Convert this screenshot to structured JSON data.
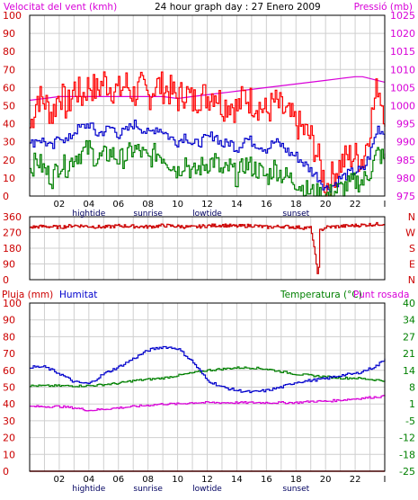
{
  "top": {
    "title": "24 hour graph day : 27 Enero 2009",
    "left_label": "Velocitat del vent (kmh)",
    "right_label": "Pressió (mb)"
  },
  "mid": {},
  "bot": {
    "left_label": "Pluja (mm)",
    "humidity_label": "Humitat",
    "temp_label": "Temperatura (°C)",
    "dew_label": "Punt rosada"
  },
  "colors": {
    "wind_gust": "#ff0000",
    "wind_avg": "#0000cc",
    "wind_low": "#008000",
    "pressure": "#d800d8",
    "direction": "#cc0000",
    "humidity": "#0000cc",
    "temperature": "#008000",
    "dewpoint": "#d800d8",
    "rain": "#cc0000",
    "grid": "#cfcfcf",
    "frame": "#000000"
  },
  "x_ticks": [
    "02",
    "04",
    "06",
    "08",
    "10",
    "12",
    "14",
    "16",
    "18",
    "20",
    "22",
    "I"
  ],
  "events": [
    {
      "x": 4,
      "label": "hightide"
    },
    {
      "x": 8,
      "label": "sunrise"
    },
    {
      "x": 12,
      "label": "lowtide"
    },
    {
      "x": 18,
      "label": "sunset"
    }
  ],
  "chart_data": [
    {
      "type": "line",
      "x_unit": "hour of day",
      "xlim": [
        0,
        24
      ],
      "y_left": {
        "label": "Velocitat del vent (kmh)",
        "lim": [
          0,
          100
        ],
        "ticks": [
          "0",
          "10",
          "20",
          "30",
          "40",
          "50",
          "60",
          "70",
          "80",
          "90",
          "100"
        ]
      },
      "y_right": {
        "label": "Pressió (mb)",
        "lim": [
          975,
          1025
        ],
        "ticks": [
          "975",
          "980",
          "985",
          "990",
          "995",
          "1000",
          "1005",
          "1010",
          "1015",
          "1020",
          "1025"
        ]
      },
      "grid": true,
      "series": [
        {
          "key": "gust",
          "axis": "left",
          "x": [
            0,
            0.5,
            1,
            1.5,
            2,
            2.5,
            3,
            3.5,
            4,
            4.5,
            5,
            5.5,
            6,
            6.5,
            7,
            7.5,
            8,
            8.5,
            9,
            9.5,
            10,
            10.5,
            11,
            11.5,
            12,
            12.5,
            13,
            13.5,
            14,
            14.5,
            15,
            15.5,
            16,
            16.5,
            17,
            17.5,
            18,
            18.5,
            19,
            19.5,
            20,
            20.5,
            21,
            21.5,
            22,
            22.5,
            23,
            23.5,
            24
          ],
          "values": [
            38,
            55,
            52,
            45,
            58,
            48,
            60,
            55,
            62,
            58,
            64,
            60,
            58,
            62,
            56,
            60,
            55,
            62,
            60,
            58,
            54,
            58,
            52,
            56,
            55,
            58,
            50,
            52,
            48,
            56,
            52,
            50,
            46,
            52,
            48,
            44,
            40,
            36,
            32,
            20,
            5,
            12,
            18,
            22,
            22,
            20,
            40,
            62,
            45
          ]
        },
        {
          "key": "avg",
          "axis": "left",
          "x": [
            0,
            0.5,
            1,
            1.5,
            2,
            2.5,
            3,
            3.5,
            4,
            4.5,
            5,
            5.5,
            6,
            6.5,
            7,
            7.5,
            8,
            8.5,
            9,
            9.5,
            10,
            10.5,
            11,
            11.5,
            12,
            12.5,
            13,
            13.5,
            14,
            14.5,
            15,
            15.5,
            16,
            16.5,
            17,
            17.5,
            18,
            18.5,
            19,
            19.5,
            20,
            20.5,
            21,
            21.5,
            22,
            22.5,
            23,
            23.5,
            24
          ],
          "values": [
            28,
            32,
            30,
            26,
            34,
            30,
            36,
            38,
            40,
            34,
            36,
            38,
            34,
            36,
            40,
            38,
            34,
            38,
            36,
            32,
            30,
            34,
            28,
            30,
            32,
            34,
            28,
            30,
            26,
            32,
            30,
            28,
            26,
            30,
            28,
            24,
            22,
            18,
            14,
            10,
            4,
            6,
            10,
            12,
            14,
            14,
            24,
            38,
            34
          ]
        },
        {
          "key": "low",
          "axis": "left",
          "x": [
            0,
            0.5,
            1,
            1.5,
            2,
            2.5,
            3,
            3.5,
            4,
            4.5,
            5,
            5.5,
            6,
            6.5,
            7,
            7.5,
            8,
            8.5,
            9,
            9.5,
            10,
            10.5,
            11,
            11.5,
            12,
            12.5,
            13,
            13.5,
            14,
            14.5,
            15,
            15.5,
            16,
            16.5,
            17,
            17.5,
            18,
            18.5,
            19,
            19.5,
            20,
            20.5,
            21,
            21.5,
            22,
            22.5,
            23,
            23.5,
            24
          ],
          "values": [
            15,
            20,
            14,
            10,
            18,
            16,
            22,
            24,
            26,
            20,
            22,
            24,
            20,
            22,
            26,
            24,
            20,
            24,
            22,
            18,
            14,
            20,
            12,
            16,
            18,
            20,
            12,
            16,
            10,
            18,
            16,
            14,
            10,
            16,
            12,
            10,
            8,
            4,
            2,
            1,
            0,
            2,
            4,
            6,
            8,
            8,
            14,
            24,
            20
          ]
        },
        {
          "key": "pressure",
          "axis": "right",
          "x": [
            0,
            1,
            2,
            3,
            4,
            5,
            6,
            7,
            8,
            9,
            10,
            11,
            12,
            13,
            14,
            15,
            16,
            17,
            18,
            19,
            20,
            21,
            22,
            22.5,
            23,
            23.5,
            24
          ],
          "values": [
            1001.5,
            1002,
            1002.5,
            1002.5,
            1002.5,
            1002.5,
            1002.5,
            1002.5,
            1002.5,
            1002.5,
            1002,
            1002.5,
            1003,
            1003.5,
            1004,
            1004.5,
            1005,
            1005.5,
            1006,
            1006.5,
            1007,
            1007.5,
            1008,
            1008,
            1007.5,
            1007,
            1006.5
          ]
        }
      ]
    },
    {
      "type": "scatter",
      "x_unit": "hour of day",
      "xlim": [
        0,
        24
      ],
      "y_left": {
        "lim": [
          0,
          360
        ],
        "ticks": [
          "0",
          "90",
          "180",
          "270",
          "360"
        ]
      },
      "y_right": {
        "ticks": [
          "N",
          "E",
          "S",
          "W",
          "N"
        ]
      },
      "grid": true,
      "series": [
        {
          "key": "direction",
          "x": [
            0,
            1,
            2,
            3,
            4,
            5,
            6,
            7,
            8,
            9,
            10,
            11,
            12,
            13,
            14,
            15,
            16,
            17,
            18,
            19,
            19.5,
            19.6,
            20,
            21,
            22,
            23,
            24
          ],
          "values": [
            300,
            305,
            300,
            310,
            305,
            300,
            308,
            305,
            302,
            310,
            305,
            300,
            308,
            312,
            305,
            310,
            300,
            305,
            300,
            295,
            10,
            280,
            300,
            305,
            310,
            315,
            320
          ]
        }
      ]
    },
    {
      "type": "line",
      "x_unit": "hour of day",
      "xlim": [
        0,
        24
      ],
      "y_left": {
        "label": "Pluja (mm)",
        "lim": [
          0,
          100
        ],
        "ticks": [
          "0",
          "10",
          "20",
          "30",
          "40",
          "50",
          "60",
          "70",
          "80",
          "90",
          "100"
        ]
      },
      "y_right": {
        "label": "Temperatura (°C)",
        "lim": [
          -25,
          40
        ],
        "ticks": [
          "-25",
          "-18",
          "-12",
          "-5",
          "1",
          "8",
          "14",
          "21",
          "27",
          "34",
          "40"
        ]
      },
      "grid": true,
      "series": [
        {
          "key": "humidity",
          "axis": "left",
          "name": "Humitat",
          "x": [
            0,
            1,
            2,
            3,
            4,
            5,
            6,
            7,
            8,
            9,
            10,
            11,
            12,
            13,
            14,
            15,
            16,
            17,
            18,
            19,
            20,
            21,
            22,
            23,
            23.5,
            24
          ],
          "values": [
            62,
            62,
            58,
            53,
            52,
            58,
            62,
            67,
            72,
            74,
            73,
            65,
            54,
            50,
            48,
            47,
            48,
            50,
            53,
            54,
            55,
            57,
            58,
            61,
            63,
            67
          ]
        },
        {
          "key": "temperature",
          "axis": "right",
          "name": "Temperatura (°C)",
          "x": [
            0,
            1,
            2,
            3,
            4,
            5,
            6,
            7,
            8,
            9,
            10,
            11,
            12,
            13,
            14,
            15,
            16,
            17,
            18,
            19,
            20,
            21,
            22,
            23,
            24
          ],
          "values": [
            8,
            8,
            8,
            8,
            8,
            8.5,
            9,
            10,
            10.5,
            11,
            12,
            13,
            14,
            14.5,
            15,
            15,
            14.5,
            13.5,
            12.5,
            12,
            11.5,
            11,
            11,
            10.5,
            10
          ]
        },
        {
          "key": "dewpoint",
          "axis": "right",
          "name": "Punt rosada",
          "x": [
            0,
            1,
            2,
            3,
            4,
            5,
            6,
            7,
            8,
            9,
            10,
            11,
            12,
            13,
            14,
            15,
            16,
            17,
            18,
            19,
            20,
            21,
            22,
            23,
            24
          ],
          "values": [
            0,
            0,
            0,
            -0.5,
            -1.5,
            -1,
            -0.5,
            0,
            0.5,
            1,
            1,
            1.5,
            1.5,
            1.5,
            1.5,
            1.5,
            1.5,
            1.5,
            1.5,
            2,
            2,
            2.5,
            3,
            3.5,
            4
          ]
        },
        {
          "key": "rain",
          "axis": "left",
          "name": "Pluja (mm)",
          "x": [
            0,
            24
          ],
          "values": [
            0,
            0
          ]
        }
      ]
    }
  ]
}
